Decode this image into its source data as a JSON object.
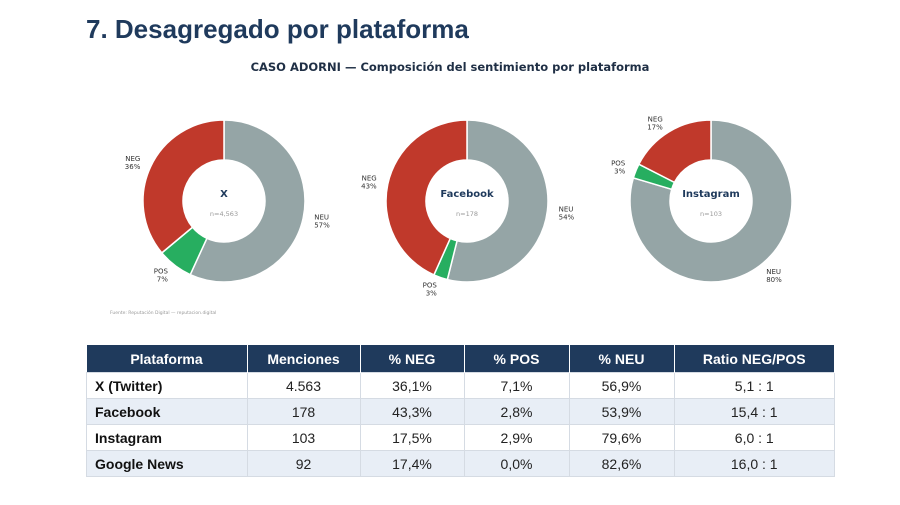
{
  "page_title": "7. Desagregado por plataforma",
  "chart_title": "CASO ADORNI — Composición del sentimiento por plataforma",
  "source_note": "Fuente: Reputación Digital — reputacion.digital",
  "colors": {
    "NEU": "#95a5a6",
    "POS": "#27ae60",
    "NEG": "#c0392b",
    "header": "#1f3a5c"
  },
  "chart_data": [
    {
      "type": "pie",
      "donut": true,
      "title": "X",
      "subtitle": "n=4,563",
      "categories": [
        "NEU",
        "POS",
        "NEG"
      ],
      "values": [
        56.9,
        7.1,
        36.1
      ],
      "labels": [
        "57%",
        "7%",
        "36%"
      ]
    },
    {
      "type": "pie",
      "donut": true,
      "title": "Facebook",
      "subtitle": "n=178",
      "categories": [
        "NEU",
        "POS",
        "NEG"
      ],
      "values": [
        53.9,
        2.8,
        43.3
      ],
      "labels": [
        "54%",
        "3%",
        "43%"
      ]
    },
    {
      "type": "pie",
      "donut": true,
      "title": "Instagram",
      "subtitle": "n=103",
      "categories": [
        "NEU",
        "POS",
        "NEG"
      ],
      "values": [
        79.6,
        2.9,
        17.5
      ],
      "labels": [
        "80%",
        "3%",
        "17%"
      ]
    }
  ],
  "table": {
    "headers": [
      "Plataforma",
      "Menciones",
      "% NEG",
      "% POS",
      "% NEU",
      "Ratio NEG/POS"
    ],
    "rows": [
      [
        "X (Twitter)",
        "4.563",
        "36,1%",
        "7,1%",
        "56,9%",
        "5,1 : 1"
      ],
      [
        "Facebook",
        "178",
        "43,3%",
        "2,8%",
        "53,9%",
        "15,4 : 1"
      ],
      [
        "Instagram",
        "103",
        "17,5%",
        "2,9%",
        "79,6%",
        "6,0 : 1"
      ],
      [
        "Google News",
        "92",
        "17,4%",
        "0,0%",
        "82,6%",
        "16,0 : 1"
      ]
    ]
  }
}
